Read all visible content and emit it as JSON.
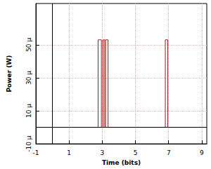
{
  "chart_data": {
    "type": "line",
    "x_label": "Time (bits)",
    "y_label": "Power (W)",
    "x": [
      -1,
      2.75,
      2.75,
      2.95,
      2.95,
      3.05,
      3.05,
      3.15,
      3.15,
      3.2,
      3.2,
      3.35,
      3.35,
      6.8,
      6.8,
      6.95,
      6.95,
      9.3
    ],
    "values": [
      0,
      0,
      5.3e-05,
      5.3e-05,
      0,
      0,
      5.3e-05,
      5.3e-05,
      0,
      0,
      5.3e-05,
      5.3e-05,
      0,
      0,
      5.3e-05,
      5.3e-05,
      0,
      0
    ],
    "color": "#9b1c1c",
    "xlim": [
      -1,
      9.3
    ],
    "xticks": [
      -1,
      1,
      3,
      5,
      7,
      9
    ],
    "ylim": [
      -1e-05,
      7.5e-05
    ],
    "yticks": [
      {
        "value": -1e-05,
        "label": "-10 µ"
      },
      {
        "value": 1e-05,
        "label": "10 µ"
      },
      {
        "value": 3e-05,
        "label": "30 µ"
      },
      {
        "value": 5e-05,
        "label": "50 µ"
      }
    ],
    "grid": true
  }
}
